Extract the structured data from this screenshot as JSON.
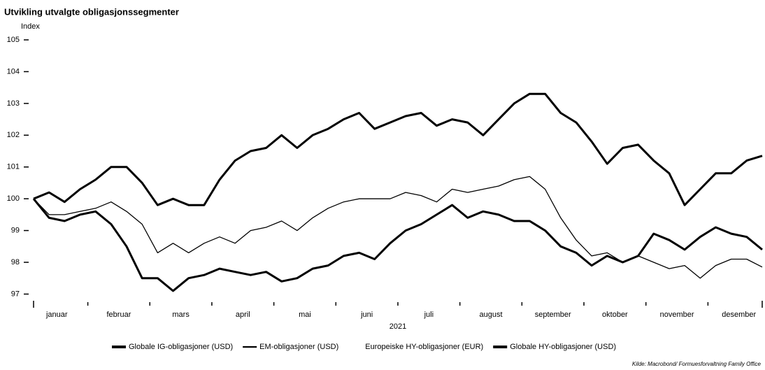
{
  "chart_data": {
    "type": "line",
    "title": "Utvikling utvalgte obligasjonssegmenter",
    "ylabel": "Index",
    "xlabel": "2021",
    "source": "Kilde: Macrobond/ Formuesforvaltning Family Office",
    "categories": [
      "januar",
      null,
      null,
      null,
      "februar",
      null,
      null,
      null,
      "mars",
      null,
      null,
      null,
      "april",
      null,
      null,
      null,
      "mai",
      null,
      null,
      null,
      "juni",
      null,
      null,
      null,
      "juli",
      null,
      null,
      null,
      "august",
      null,
      null,
      null,
      "september",
      null,
      null,
      null,
      "oktober",
      null,
      null,
      null,
      "november",
      null,
      null,
      null,
      "desember",
      null,
      null,
      null
    ],
    "ylim": [
      96.9,
      105
    ],
    "yticks": [
      97,
      98,
      99,
      100,
      101,
      102,
      103,
      104,
      105
    ],
    "grid": false,
    "legend": "bottom",
    "series": [
      {
        "name": "Globale IG-obligasjoner (USD)",
        "color": "#000000",
        "width": 3,
        "values": [
          100,
          99.4,
          99.3,
          99.5,
          99.6,
          99.2,
          98.5,
          97.5,
          97.5,
          97.1,
          97.5,
          97.6,
          97.8,
          97.7,
          97.6,
          97.7,
          97.4,
          97.5,
          97.8,
          97.9,
          98.2,
          98.3,
          98.1,
          98.6,
          99.0,
          99.2,
          99.5,
          99.8,
          99.4,
          99.6,
          99.5,
          99.3,
          99.3,
          99.0,
          98.5,
          98.3,
          97.9,
          98.2,
          98.0,
          98.2,
          98.9,
          98.7,
          98.4,
          98.8,
          99.1,
          98.9,
          98.8,
          98.4
        ]
      },
      {
        "name": "EM-obligasjoner (USD)",
        "color": "#000000",
        "width": 1.3,
        "values": [
          100,
          99.5,
          99.5,
          99.6,
          99.7,
          99.9,
          99.6,
          99.2,
          98.3,
          98.6,
          98.3,
          98.6,
          98.8,
          98.6,
          99.0,
          99.1,
          99.3,
          99.0,
          99.4,
          99.7,
          99.9,
          100.0,
          100.0,
          100.0,
          100.2,
          100.1,
          99.9,
          100.3,
          100.2,
          100.3,
          100.4,
          100.6,
          100.7,
          100.3,
          99.4,
          98.7,
          98.2,
          98.3,
          98.0,
          98.2,
          98.0,
          97.8,
          97.9,
          97.5,
          97.9,
          98.1,
          98.1,
          97.85
        ]
      },
      {
        "name": "Europeiske HY-obligasjoner (EUR)",
        "color": "#ffffff",
        "width": 3,
        "values": [
          null,
          null,
          null,
          null,
          null,
          null,
          null,
          null,
          null,
          null,
          null,
          null,
          null,
          null,
          null,
          null,
          null,
          null,
          null,
          null,
          null,
          null,
          null,
          null,
          null,
          null,
          null,
          null,
          null,
          null,
          null,
          null,
          null,
          null,
          null,
          null,
          null,
          null,
          null,
          null,
          null,
          null,
          null,
          null,
          null,
          null,
          null,
          null
        ]
      },
      {
        "name": "Globale HY-obligasjoner (USD)",
        "color": "#000000",
        "width": 3,
        "values": [
          100,
          100.2,
          99.9,
          100.3,
          100.6,
          101.0,
          101.0,
          100.5,
          99.8,
          100.0,
          99.8,
          99.8,
          100.6,
          101.2,
          101.5,
          101.6,
          102.0,
          101.6,
          102.0,
          102.2,
          102.5,
          102.7,
          102.2,
          102.4,
          102.6,
          102.7,
          102.3,
          102.5,
          102.4,
          102.0,
          102.5,
          103.0,
          103.3,
          103.3,
          102.7,
          102.4,
          101.8,
          101.1,
          101.6,
          101.7,
          101.2,
          100.8,
          99.8,
          100.3,
          100.8,
          100.8,
          101.2,
          101.35
        ]
      }
    ]
  }
}
